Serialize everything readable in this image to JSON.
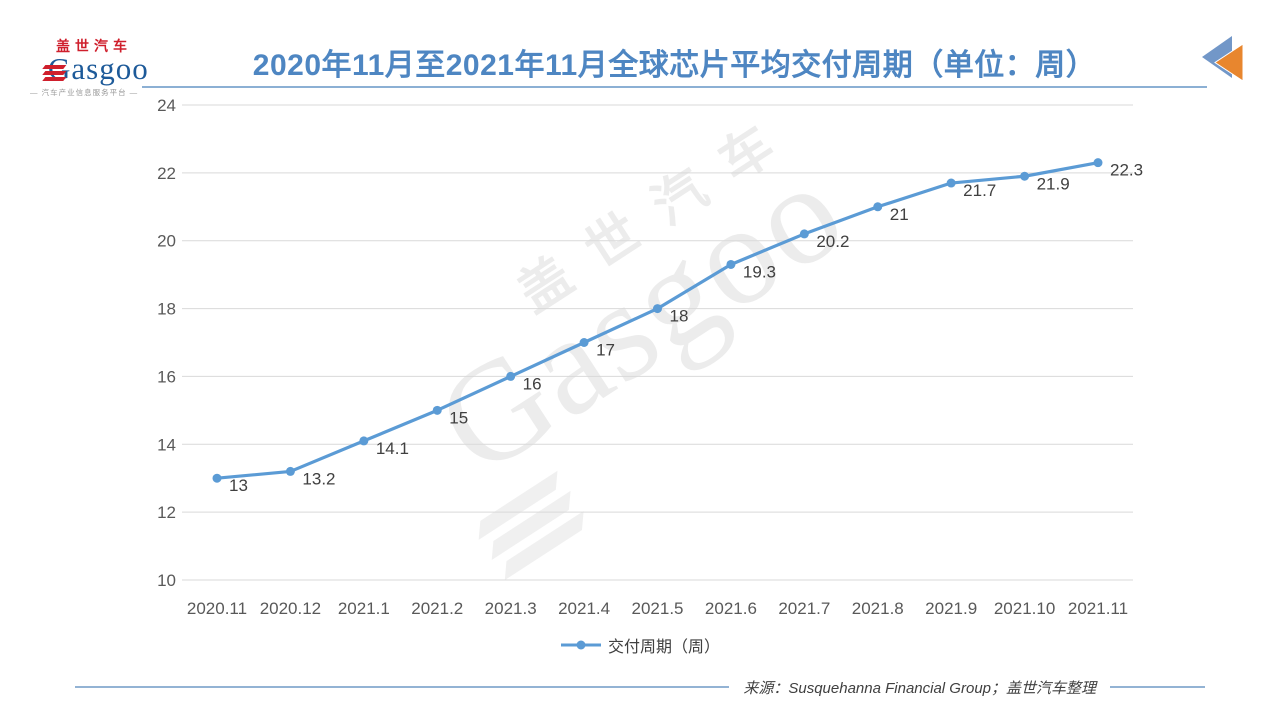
{
  "logo": {
    "brand_cn": "盖世汽车",
    "wordmark": "Gasgoo",
    "tagline": "— 汽车产业信息服务平台 —"
  },
  "header": {
    "title": "2020年11月至2021年11月全球芯片平均交付周期（单位：周）",
    "title_color": "#4e86c2",
    "icon": "double-triangle-left",
    "icon_colors": {
      "blue": "#7297c8",
      "orange": "#e8862e"
    }
  },
  "watermark": {
    "line1": "盖世汽车",
    "line2": "Gasgoo"
  },
  "chart_data": {
    "type": "line",
    "title": "2020年11月至2021年11月全球芯片平均交付周期（单位：周）",
    "categories": [
      "2020.11",
      "2020.12",
      "2021.1",
      "2021.2",
      "2021.3",
      "2021.4",
      "2021.5",
      "2021.6",
      "2021.7",
      "2021.8",
      "2021.9",
      "2021.10",
      "2021.11"
    ],
    "series": [
      {
        "name": "交付周期（周）",
        "values": [
          13,
          13.2,
          14.1,
          15,
          16,
          17,
          18,
          19.3,
          20.2,
          21,
          21.7,
          21.9,
          22.3
        ],
        "color": "#5b9bd5"
      }
    ],
    "data_labels": [
      "13",
      "13.2",
      "14.1",
      "15",
      "16",
      "17",
      "18",
      "19.3",
      "20.2",
      "21",
      "21.7",
      "21.9",
      "22.3"
    ],
    "xlabel": "",
    "ylabel": "",
    "ylim": [
      10,
      24
    ],
    "yticks": [
      10,
      12,
      14,
      16,
      18,
      20,
      22,
      24
    ],
    "grid": true,
    "legend_position": "bottom"
  },
  "footer": {
    "source": "来源：Susquehanna Financial Group；盖世汽车整理"
  }
}
